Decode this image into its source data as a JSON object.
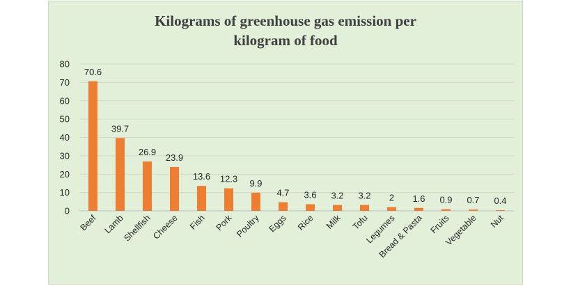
{
  "chart_data": {
    "type": "bar",
    "title_line1": "Kilograms of greenhouse gas emission per",
    "title_line2": "kilogram of food",
    "categories": [
      "Beef",
      "Lamb",
      "Shellfish",
      "Cheese",
      "Fish",
      "Pork",
      "Poultry",
      "Eggs",
      "Rice",
      "Milk",
      "Tofu",
      "Legumes",
      "Bread & Pasta",
      "Fruits",
      "Vegetable",
      "Nut"
    ],
    "values": [
      70.6,
      39.7,
      26.9,
      23.9,
      13.6,
      12.3,
      9.9,
      4.7,
      3.6,
      3.2,
      3.2,
      2,
      1.6,
      0.9,
      0.7,
      0.4
    ],
    "data_labels": [
      "70.6",
      "39.7",
      "26.9",
      "23.9",
      "13.6",
      "12.3",
      "9.9",
      "4.7",
      "3.6",
      "3.2",
      "3.2",
      "2",
      "1.6",
      "0.9",
      "0.7",
      "0.4"
    ],
    "y_ticks": [
      0,
      10,
      20,
      30,
      40,
      50,
      60,
      70,
      80
    ],
    "ylim": [
      0,
      80
    ],
    "grid": true,
    "legend": "none",
    "colors": {
      "bar": "#ed7d31",
      "grid": "#cfdcc7",
      "background": "#e2efd9"
    }
  }
}
